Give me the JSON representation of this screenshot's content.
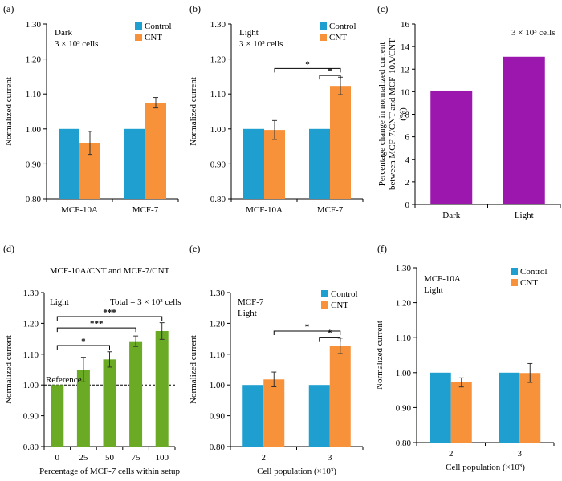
{
  "colors": {
    "control": "#1f9fd0",
    "cnt": "#f7913a",
    "purple": "#9b17ae",
    "green": "#6aaa25",
    "axis": "#000000"
  },
  "chart_data": [
    {
      "id": "a",
      "panel_label": "(a)",
      "type": "bar",
      "categories": [
        "MCF-10A",
        "MCF-7"
      ],
      "series": [
        {
          "name": "Control",
          "values": [
            1.0,
            1.0
          ],
          "errors": [
            0,
            0
          ]
        },
        {
          "name": "CNT",
          "values": [
            0.96,
            1.075
          ],
          "errors": [
            0.033,
            0.015
          ]
        }
      ],
      "ylabel": "Normalized current",
      "xlabel": "",
      "ylim": [
        0.8,
        1.3
      ],
      "yticks": [
        "0.80",
        "0.90",
        "1.00",
        "1.10",
        "1.20",
        "1.30"
      ],
      "notes": [
        "Dark",
        "3 × 10³ cells"
      ],
      "legend": [
        "Control",
        "CNT"
      ],
      "significance": []
    },
    {
      "id": "b",
      "panel_label": "(b)",
      "type": "bar",
      "categories": [
        "MCF-10A",
        "MCF-7"
      ],
      "series": [
        {
          "name": "Control",
          "values": [
            1.0,
            1.0
          ],
          "errors": [
            0,
            0
          ]
        },
        {
          "name": "CNT",
          "values": [
            0.997,
            1.123
          ],
          "errors": [
            0.027,
            0.025
          ]
        }
      ],
      "ylabel": "Normalized current",
      "xlabel": "",
      "ylim": [
        0.8,
        1.3
      ],
      "yticks": [
        "0.80",
        "0.90",
        "1.00",
        "1.10",
        "1.20",
        "1.30"
      ],
      "notes": [
        "Light",
        "3 × 10³ cells"
      ],
      "legend": [
        "Control",
        "CNT"
      ],
      "significance": [
        {
          "from": [
            0,
            1
          ],
          "to": [
            1,
            1
          ],
          "y": 1.173,
          "label": "*"
        },
        {
          "from": [
            1,
            0
          ],
          "to": [
            1,
            1
          ],
          "y": 1.153,
          "label": "*"
        }
      ]
    },
    {
      "id": "c",
      "panel_label": "(c)",
      "type": "bar",
      "categories": [
        "Dark",
        "Light"
      ],
      "series": [
        {
          "name": "Percentage change",
          "values": [
            10.1,
            13.1
          ],
          "errors": [
            0,
            0
          ]
        }
      ],
      "ylabel": "Percentage change in normalized current between MCF-7/CNT and MCF-10A/CNT (%)",
      "ylabel_lines": [
        "Percentage change in normalized current",
        "between MCF-7/CNT and MCF-10A/CNT",
        "(%)"
      ],
      "xlabel": "",
      "ylim": [
        0,
        16
      ],
      "yticks": [
        "0",
        "2",
        "4",
        "6",
        "8",
        "10",
        "12",
        "14",
        "16"
      ],
      "notes": [
        "3 × 10³ cells"
      ],
      "legend": [],
      "significance": []
    },
    {
      "id": "d",
      "panel_label": "(d)",
      "type": "bar",
      "title": "MCF-10A/CNT and MCF-7/CNT",
      "categories": [
        "0",
        "25",
        "50",
        "75",
        "100"
      ],
      "series": [
        {
          "name": "Normalized current",
          "values": [
            1.0,
            1.05,
            1.083,
            1.142,
            1.175
          ],
          "errors": [
            0,
            0.04,
            0.025,
            0.017,
            0.027
          ]
        }
      ],
      "ylabel": "Normalized current",
      "xlabel": "Percentage of MCF-7 cells within setup",
      "ylim": [
        0.8,
        1.3
      ],
      "yticks": [
        "0.80",
        "0.90",
        "1.00",
        "1.10",
        "1.20",
        "1.30"
      ],
      "notes": [
        "Light",
        "Total = 3 × 10³ cells"
      ],
      "legend": [],
      "reference": {
        "y": 1.0,
        "label": "Reference"
      },
      "significance": [
        {
          "from": [
            0,
            0
          ],
          "to": [
            4,
            0
          ],
          "y": 1.222,
          "label": "***"
        },
        {
          "from": [
            0,
            0
          ],
          "to": [
            3,
            0
          ],
          "y": 1.185,
          "label": "***"
        },
        {
          "from": [
            0,
            0
          ],
          "to": [
            2,
            0
          ],
          "y": 1.128,
          "label": "*"
        }
      ]
    },
    {
      "id": "e",
      "panel_label": "(e)",
      "type": "bar",
      "categories": [
        "2",
        "3"
      ],
      "series": [
        {
          "name": "Control",
          "values": [
            1.0,
            1.0
          ],
          "errors": [
            0,
            0
          ]
        },
        {
          "name": "CNT",
          "values": [
            1.018,
            1.127
          ],
          "errors": [
            0.024,
            0.025
          ]
        }
      ],
      "ylabel": "Normalized current",
      "xlabel": "Cell population (×10³)",
      "ylim": [
        0.8,
        1.3
      ],
      "yticks": [
        "0.80",
        "0.90",
        "1.00",
        "1.10",
        "1.20",
        "1.30"
      ],
      "notes": [
        "MCF-7",
        "Light"
      ],
      "legend": [
        "Control",
        "CNT"
      ],
      "significance": [
        {
          "from": [
            0,
            1
          ],
          "to": [
            1,
            1
          ],
          "y": 1.175,
          "label": "*"
        },
        {
          "from": [
            1,
            0
          ],
          "to": [
            1,
            1
          ],
          "y": 1.155,
          "label": "*"
        }
      ]
    },
    {
      "id": "f",
      "panel_label": "(f)",
      "type": "bar",
      "categories": [
        "2",
        "3"
      ],
      "series": [
        {
          "name": "Control",
          "values": [
            1.0,
            1.0
          ],
          "errors": [
            0,
            0
          ]
        },
        {
          "name": "CNT",
          "values": [
            0.972,
            0.999
          ],
          "errors": [
            0.013,
            0.027
          ]
        }
      ],
      "ylabel": "Normalized current",
      "xlabel": "Cell population (×10³)",
      "ylim": [
        0.8,
        1.3
      ],
      "yticks": [
        "0.80",
        "0.90",
        "1.00",
        "1.10",
        "1.20",
        "1.30"
      ],
      "notes": [
        "MCF-10A",
        "Light"
      ],
      "legend": [
        "Control",
        "CNT"
      ],
      "significance": []
    }
  ]
}
